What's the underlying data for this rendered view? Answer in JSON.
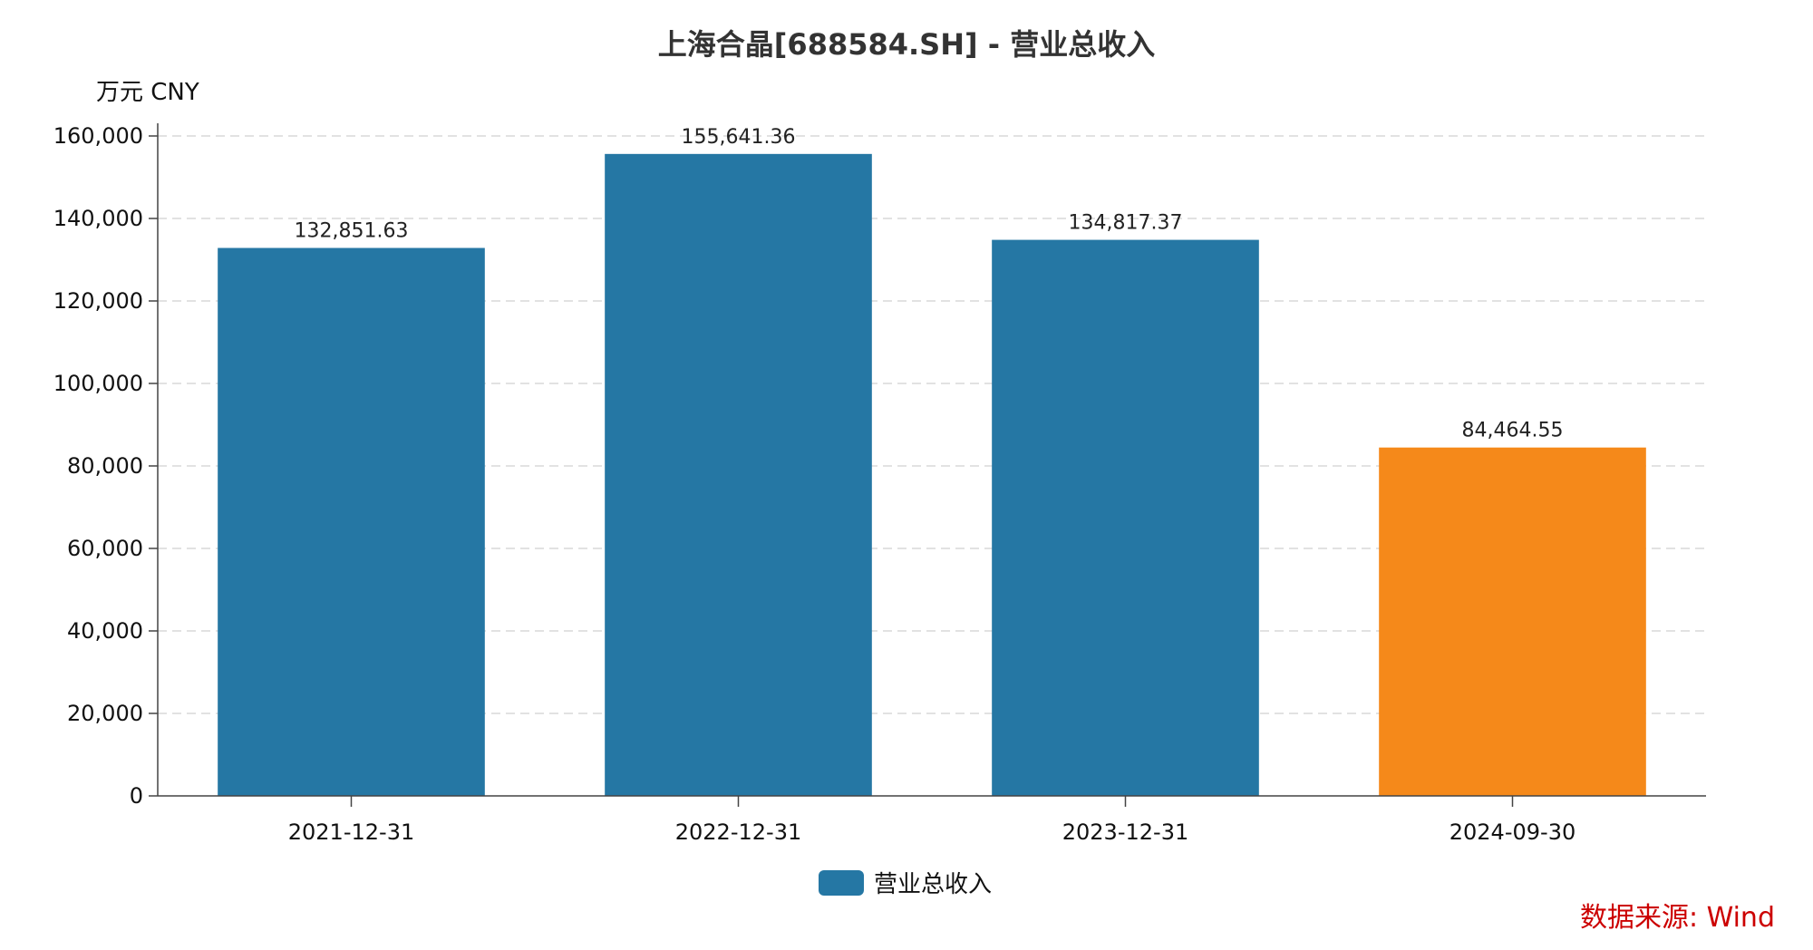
{
  "chart_data": {
    "type": "bar",
    "title": "上海合晶[688584.SH] - 营业总收入",
    "unit_label": "万元  CNY",
    "categories": [
      "2021-12-31",
      "2022-12-31",
      "2023-12-31",
      "2024-09-30"
    ],
    "series": [
      {
        "name": "营业总收入",
        "values": [
          132851.63,
          155641.36,
          134817.37,
          84464.55
        ],
        "value_labels": [
          "132,851.63",
          "155,641.36",
          "134,817.37",
          "84,464.55"
        ],
        "colors": [
          "#2577a4",
          "#2577a4",
          "#2577a4",
          "#f5891a"
        ]
      }
    ],
    "ylim": [
      0,
      160000
    ],
    "y_ticks": [
      0,
      20000,
      40000,
      60000,
      80000,
      100000,
      120000,
      140000,
      160000
    ],
    "y_tick_labels": [
      "0",
      "20,000",
      "40,000",
      "60,000",
      "80,000",
      "100,000",
      "120,000",
      "140,000",
      "160,000"
    ],
    "grid": true,
    "legend_position": "bottom-center",
    "legend_color": "#2577a4",
    "source": "数据来源: Wind"
  }
}
